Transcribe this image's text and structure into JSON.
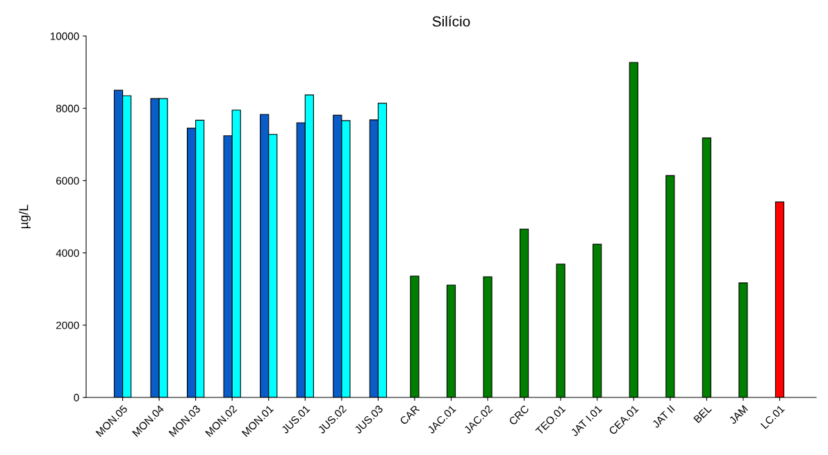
{
  "chart_data": {
    "type": "bar",
    "title": "Silício",
    "ylabel": "µg/L",
    "categories": [
      "MON.05",
      "MON.04",
      "MON.03",
      "MON.02",
      "MON.01",
      "JUS.01",
      "JUS.02",
      "JUS.03",
      "CAR",
      "JAC.01",
      "JAC.02",
      "CRC",
      "TEO.01",
      "JAT I.01",
      "CEA.01",
      "JAT II",
      "BEL",
      "JAM",
      "LC.01"
    ],
    "series": [
      {
        "color": "#0a5cc8",
        "values": [
          8500,
          8270,
          7450,
          7240,
          7830,
          7600,
          7810,
          7680,
          null,
          null,
          null,
          null,
          null,
          null,
          null,
          null,
          null,
          null,
          null
        ]
      },
      {
        "color": "#00ffff",
        "values": [
          8350,
          8270,
          7670,
          7950,
          7280,
          8370,
          7660,
          8140,
          null,
          null,
          null,
          null,
          null,
          null,
          null,
          null,
          null,
          null,
          null
        ]
      },
      {
        "color": "#007f00",
        "values": [
          null,
          null,
          null,
          null,
          null,
          null,
          null,
          null,
          3360,
          3110,
          3340,
          4660,
          3690,
          4240,
          9270,
          6140,
          7180,
          3170,
          null
        ]
      },
      {
        "color": "#ff0000",
        "values": [
          null,
          null,
          null,
          null,
          null,
          null,
          null,
          null,
          null,
          null,
          null,
          null,
          null,
          null,
          null,
          null,
          null,
          null,
          5410
        ]
      }
    ],
    "ylim": [
      0,
      10000
    ],
    "yticks": [
      0,
      2000,
      4000,
      6000,
      8000,
      10000
    ],
    "grid": false,
    "legend": false
  }
}
